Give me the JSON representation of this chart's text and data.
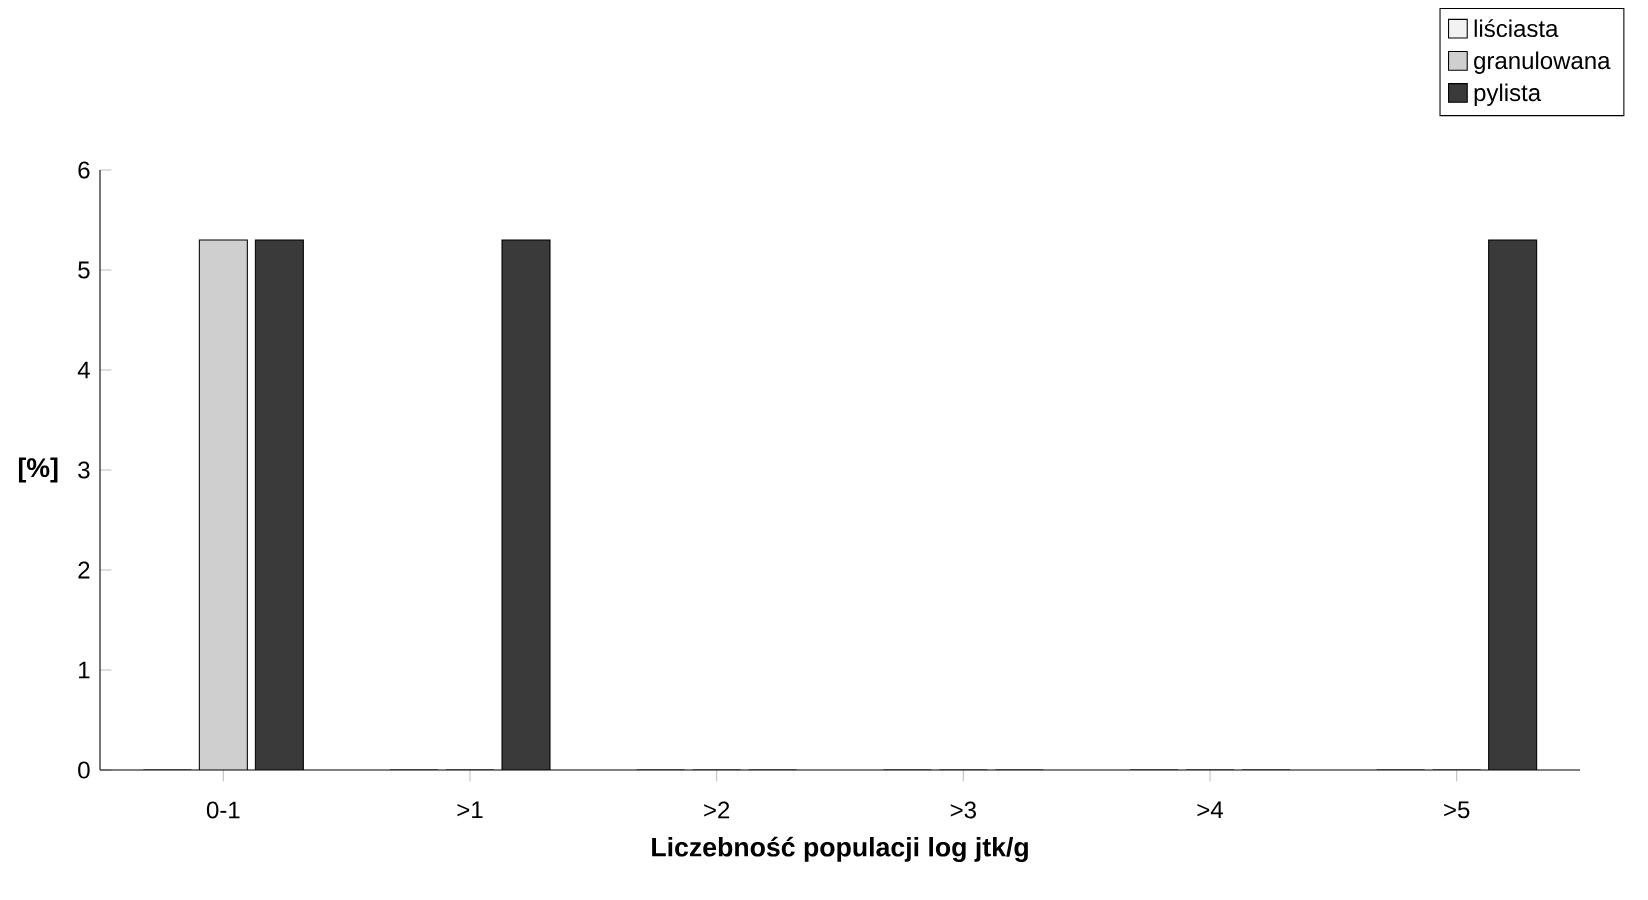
{
  "chart_data": {
    "type": "bar",
    "xlabel": "Liczebność populacji log jtk/g",
    "ylabel": "[%]",
    "categories": [
      "0-1",
      ">1",
      ">2",
      ">3",
      ">4",
      ">5"
    ],
    "series": [
      {
        "name": "liściasta",
        "color": "#f2f2f2",
        "values": [
          0,
          0,
          0,
          0,
          0,
          0
        ]
      },
      {
        "name": "granulowana",
        "color": "#cfcfcf",
        "values": [
          5.3,
          0,
          0,
          0,
          0,
          0
        ]
      },
      {
        "name": "pylista",
        "color": "#3a3a3a",
        "values": [
          5.3,
          5.3,
          0,
          0,
          0,
          5.3
        ]
      }
    ],
    "ylim": [
      0,
      6
    ],
    "yticks": [
      0,
      1,
      2,
      3,
      4,
      5,
      6
    ],
    "grid": false,
    "legend": "top right"
  }
}
